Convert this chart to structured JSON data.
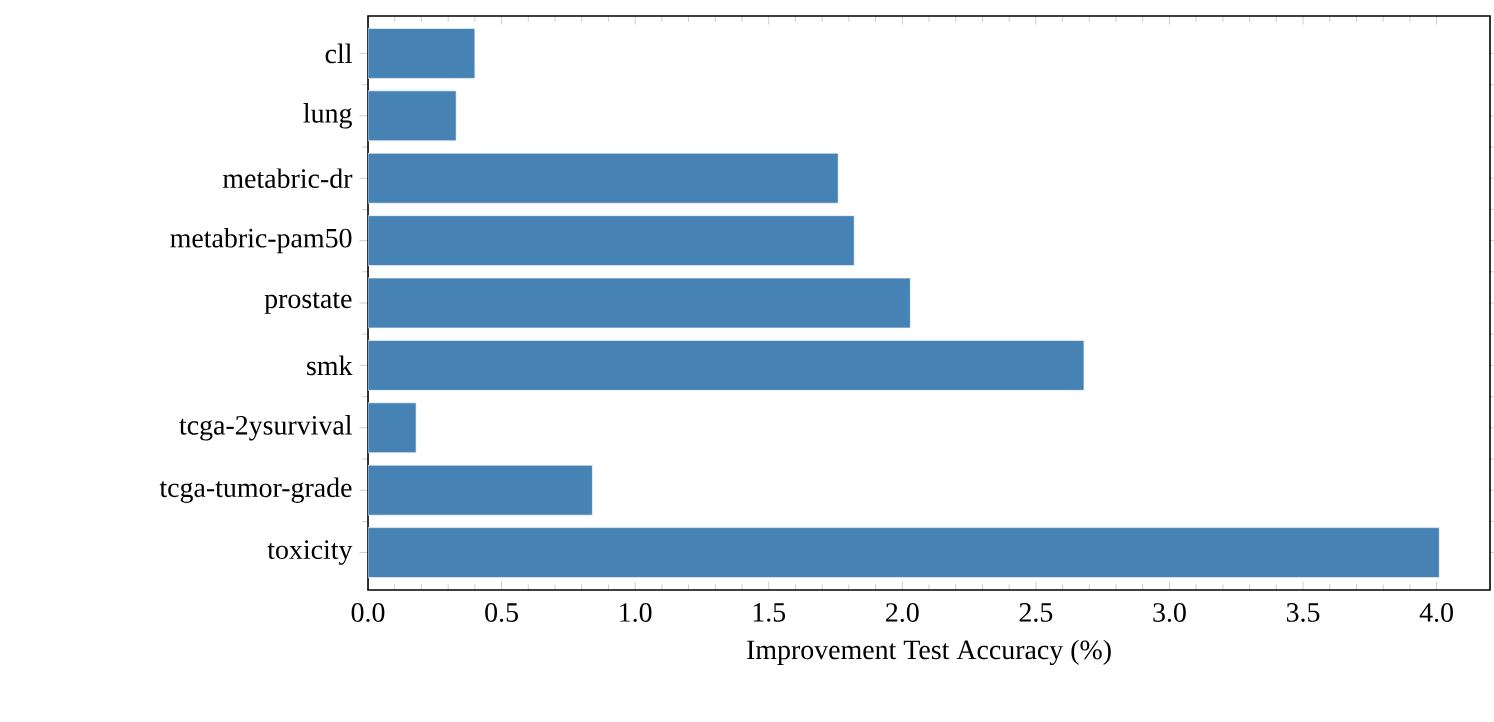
{
  "chart_data": {
    "type": "bar",
    "orientation": "horizontal",
    "xlabel": "Improvement Test Accuracy (%)",
    "categories": [
      "cll",
      "lung",
      "metabric-dr",
      "metabric-pam50",
      "prostate",
      "smk",
      "tcga-2ysurvival",
      "tcga-tumor-grade",
      "toxicity"
    ],
    "values": [
      0.4,
      0.33,
      1.76,
      1.82,
      2.03,
      2.68,
      0.18,
      0.84,
      4.01
    ],
    "color": "#4682b4",
    "xlim": [
      0,
      4.2
    ],
    "xticks": [
      {
        "value": 0,
        "label": "0.0"
      },
      0.5,
      {
        "value": 1,
        "label": "1.0"
      },
      1.5,
      {
        "value": 2,
        "label": "2.0"
      },
      2.5,
      {
        "value": 3,
        "label": "3.0"
      },
      3.5,
      {
        "value": 4,
        "label": "4.0"
      }
    ]
  }
}
